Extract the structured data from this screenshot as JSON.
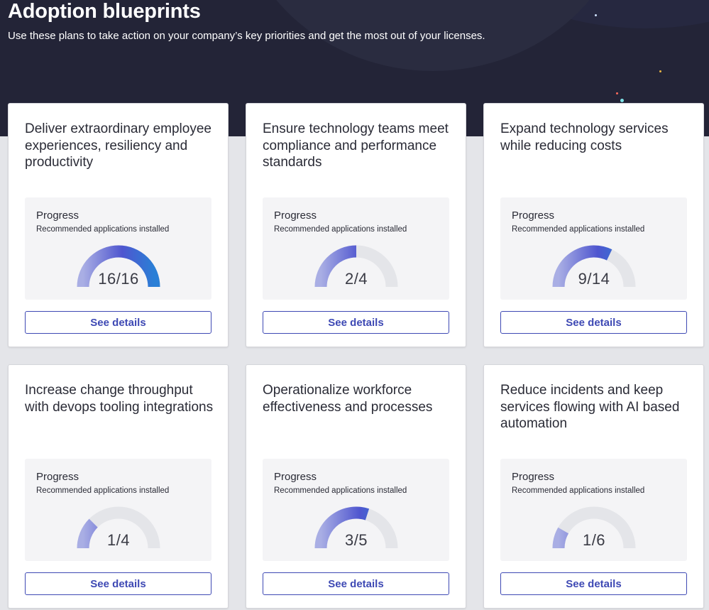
{
  "header": {
    "title": "Adoption blueprints",
    "subtitle": "Use these plans to take action on your company’s key priorities and get the most out of your licenses."
  },
  "colors": {
    "hero_bg": "#232437",
    "gauge_start": "#a9aee4",
    "gauge_mid": "#4f56cf",
    "gauge_end": "#2a7fd6",
    "gauge_track": "#e4e5e9",
    "button_accent": "#3e49b4"
  },
  "cards": [
    {
      "title": "Deliver extraordinary employee experiences, resiliency and productivity",
      "progress_label": "Progress",
      "progress_sub": "Recommended applications installed",
      "installed": 16,
      "total": 16,
      "value_text": "16/16",
      "button_label": "See details"
    },
    {
      "title": "Ensure technology teams meet compliance and performance standards",
      "progress_label": "Progress",
      "progress_sub": "Recommended applications installed",
      "installed": 2,
      "total": 4,
      "value_text": "2/4",
      "button_label": "See details"
    },
    {
      "title": "Expand technology services while reducing costs",
      "progress_label": "Progress",
      "progress_sub": "Recommended applications installed",
      "installed": 9,
      "total": 14,
      "value_text": "9/14",
      "button_label": "See details"
    },
    {
      "title": "Increase change throughput with devops tooling integrations",
      "progress_label": "Progress",
      "progress_sub": "Recommended applications installed",
      "installed": 1,
      "total": 4,
      "value_text": "1/4",
      "button_label": "See details"
    },
    {
      "title": "Operationalize workforce effectiveness and processes",
      "progress_label": "Progress",
      "progress_sub": "Recommended applications installed",
      "installed": 3,
      "total": 5,
      "value_text": "3/5",
      "button_label": "See details"
    },
    {
      "title": "Reduce incidents and keep services flowing with AI based automation",
      "progress_label": "Progress",
      "progress_sub": "Recommended applications installed",
      "installed": 1,
      "total": 6,
      "value_text": "1/6",
      "button_label": "See details"
    }
  ]
}
